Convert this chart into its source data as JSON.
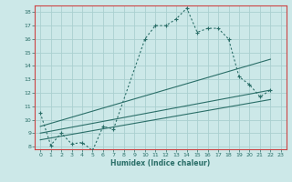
{
  "xlabel": "Humidex (Indice chaleur)",
  "ylabel": "",
  "bg_color": "#cce8e8",
  "grid_color": "#aad0d0",
  "line_color": "#2a6e68",
  "spine_color": "#cc4444",
  "xlim": [
    -0.5,
    23.5
  ],
  "ylim": [
    7.8,
    18.5
  ],
  "xticks": [
    0,
    1,
    2,
    3,
    4,
    5,
    6,
    7,
    8,
    9,
    10,
    11,
    12,
    13,
    14,
    15,
    16,
    17,
    18,
    19,
    20,
    21,
    22,
    23
  ],
  "yticks": [
    8,
    9,
    10,
    11,
    12,
    13,
    14,
    15,
    16,
    17,
    18
  ],
  "series0_x": [
    0,
    1,
    2,
    3,
    4,
    5,
    6,
    7,
    10,
    11,
    12,
    13,
    14,
    15,
    16,
    17,
    18,
    19,
    20,
    21,
    22
  ],
  "series0_y": [
    10.5,
    8.1,
    9.0,
    8.2,
    8.3,
    7.7,
    9.5,
    9.3,
    16.0,
    17.0,
    17.0,
    17.5,
    18.3,
    16.5,
    16.8,
    16.8,
    16.0,
    13.2,
    12.6,
    11.7,
    12.2
  ],
  "series1_x": [
    0,
    22
  ],
  "series1_y": [
    9.5,
    14.5
  ],
  "series2_x": [
    0,
    22
  ],
  "series2_y": [
    9.0,
    12.2
  ],
  "series3_x": [
    0,
    22
  ],
  "series3_y": [
    8.5,
    11.5
  ]
}
